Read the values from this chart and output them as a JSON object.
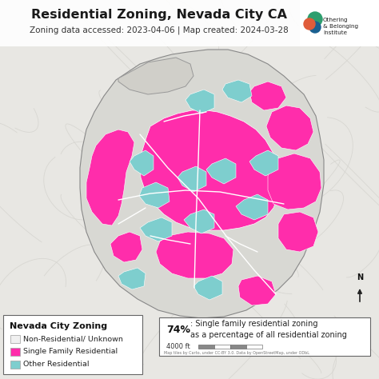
{
  "title": "Residential Zoning, Nevada City CA",
  "subtitle": "Zoning data accessed: 2023-04-06 | Map created: 2024-03-28",
  "legend_title": "Nevada City Zoning",
  "legend_items": [
    {
      "label": "Non-Residential/ Unknown",
      "facecolor": "#f0f0f0",
      "edgecolor": "#aaaaaa"
    },
    {
      "label": "Single Family Residential",
      "facecolor": "#ff2dab",
      "edgecolor": "#aaaaaa"
    },
    {
      "label": "Other Residential",
      "facecolor": "#7ecece",
      "edgecolor": "#aaaaaa"
    }
  ],
  "stat_bold": "74%",
  "stat_rest": ": Single family residential zoning\nas a percentage of all residential zoning",
  "scale_label": "4000 ft",
  "credit_text": "Map tiles by Carto, under CC-BY 3.0. Data by OpenStreetMap, under ODbL",
  "title_fontsize": 11.5,
  "subtitle_fontsize": 7.5,
  "legend_fontsize": 7.5,
  "stat_fontsize": 9,
  "obi_orange": "#e05c3a",
  "obi_green": "#2e9e6e",
  "obi_blue": "#1a6090",
  "pink": "#ff2dab",
  "teal": "#7ecece",
  "bg_color": "#e8e7e3",
  "city_fill": "#d8d8d3",
  "city_edge": "#888888",
  "nonres_fill": "#c8c8c3",
  "white": "#ffffff"
}
